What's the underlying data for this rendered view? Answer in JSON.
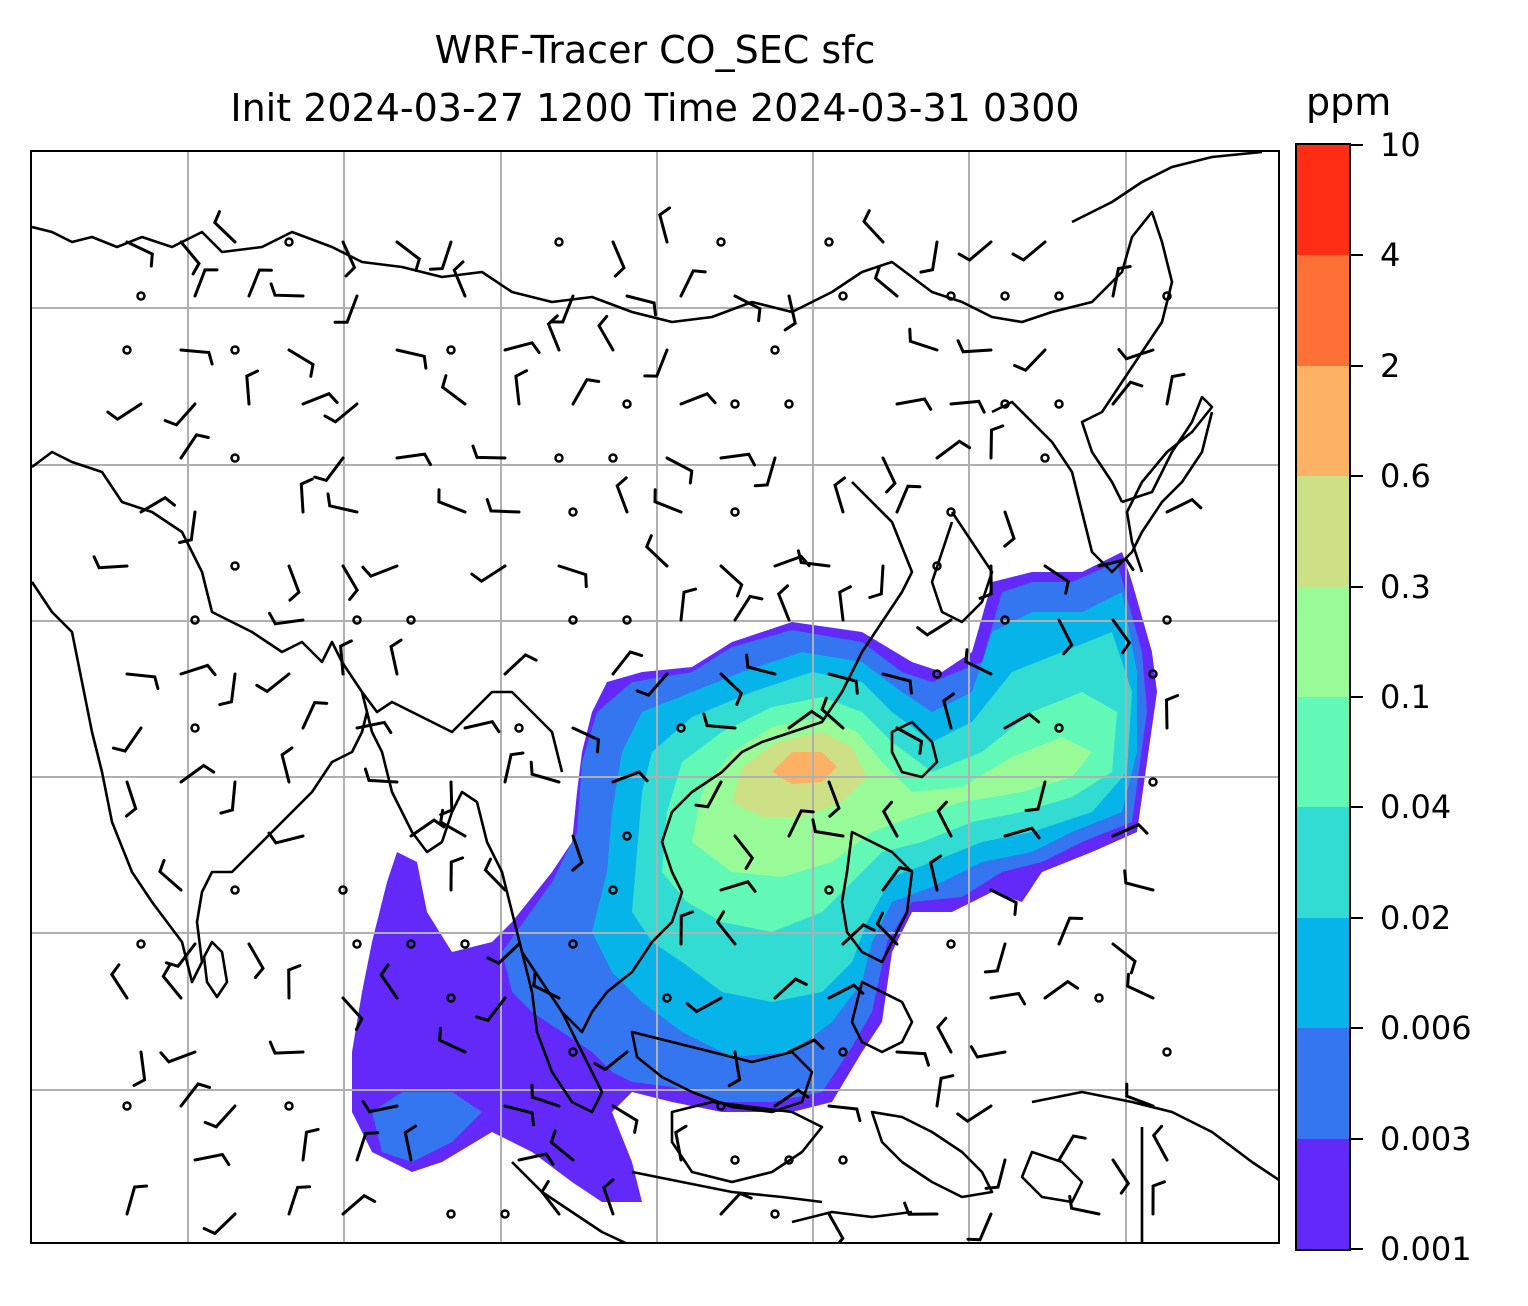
{
  "title": {
    "line1": "WRF-Tracer CO_SEC sfc",
    "line2": "Init 2024-03-27 1200 Time 2024-03-31 0300"
  },
  "colorbar": {
    "unit": "ppm",
    "ticks": [
      "0.001",
      "0.003",
      "0.006",
      "0.02",
      "0.04",
      "0.1",
      "0.3",
      "0.6",
      "2",
      "4",
      "10"
    ],
    "colors": [
      "#6229f9",
      "#3475f0",
      "#06b4ea",
      "#33dcd2",
      "#62f9b7",
      "#98fb97",
      "#cde085",
      "#fdb165",
      "#ff7036",
      "#fe2d14"
    ]
  },
  "map": {
    "gridlines": true,
    "gridline_color": "#b0b0b0",
    "coastline_color": "#000000",
    "barb_color": "#000000"
  }
}
